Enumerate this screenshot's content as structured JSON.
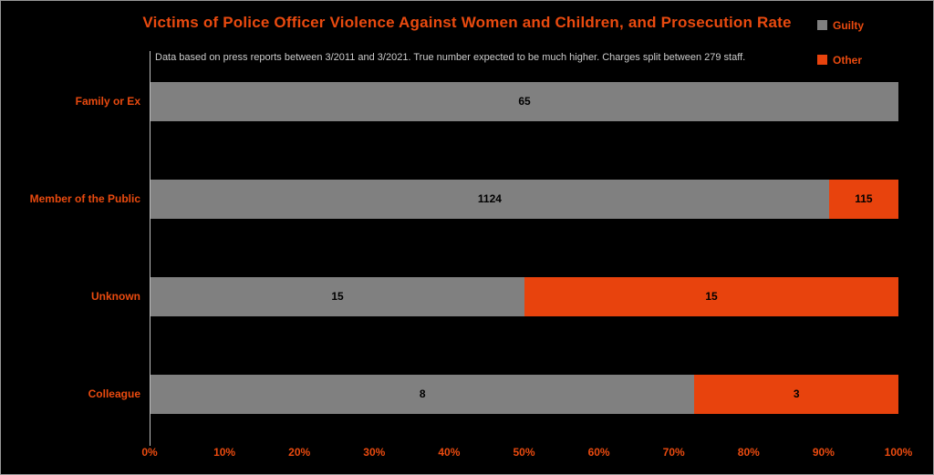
{
  "colors": {
    "background": "#000000",
    "accent_text": "#E94A0F",
    "subtitle_text": "#CCCCCC",
    "axis_line": "#BEBEBE",
    "value_label": "#000000",
    "frame_border": "#979797",
    "guilty_gray": "#808080",
    "other_orange": "#E8430D"
  },
  "chart_data": {
    "type": "bar",
    "variant": "horizontal-stacked-100-percent",
    "title": "Victims of Police Officer Violence Against Women and Children, and Prosecution Rate",
    "subtitle": "Data based on press reports between 3/2011 and 3/2021. True number expected to be much higher. Charges split between 279 staff.",
    "categories": [
      "Family or Ex",
      "Member of the Public",
      "Unknown",
      "Colleague"
    ],
    "series": [
      {
        "name": "Guilty",
        "color": "#808080",
        "values": [
          65,
          1124,
          15,
          8
        ]
      },
      {
        "name": "Other",
        "color": "#E8430D",
        "values": [
          0,
          115,
          15,
          3
        ]
      }
    ],
    "segment_percentages": [
      [
        100.0,
        0.0
      ],
      [
        90.7,
        9.3
      ],
      [
        50.0,
        50.0
      ],
      [
        72.7,
        27.3
      ]
    ],
    "x_axis": {
      "min": 0,
      "max": 100,
      "unit": "%",
      "tick_labels": [
        "0%",
        "10%",
        "20%",
        "30%",
        "40%",
        "50%",
        "60%",
        "70%",
        "80%",
        "90%",
        "100%"
      ]
    },
    "legend": {
      "position": "top-right",
      "entries": [
        "Guilty",
        "Other"
      ]
    },
    "value_labels_visible": true,
    "grid": false
  }
}
